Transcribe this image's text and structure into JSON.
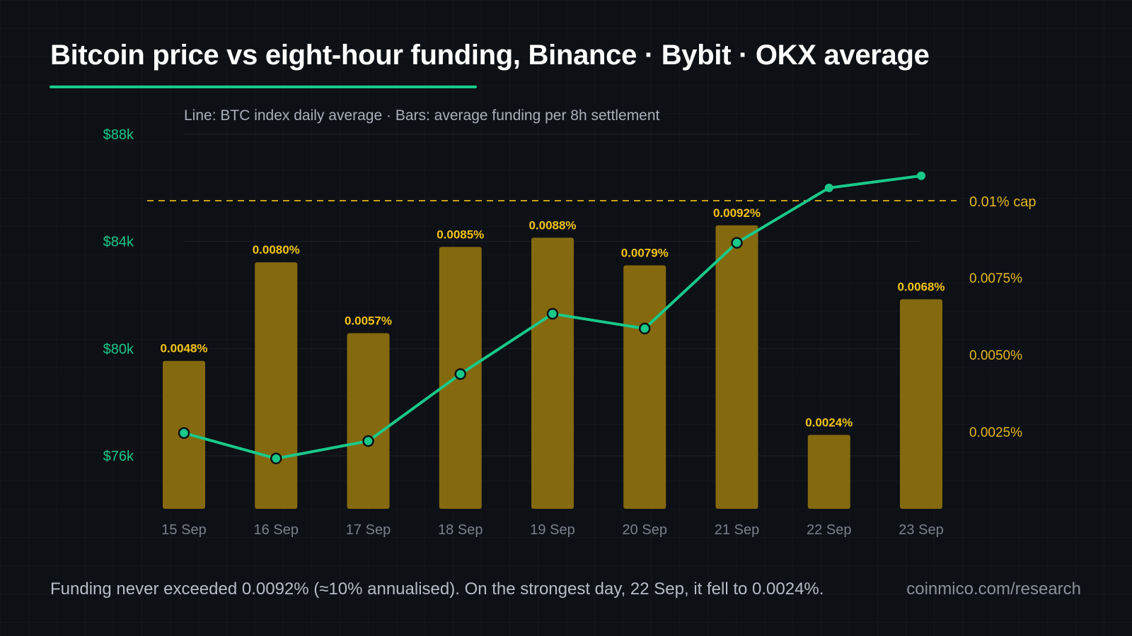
{
  "title": "Bitcoin price vs eight-hour funding, Binance · Bybit · OKX average",
  "chart_data": {
    "type": "bar+line",
    "subtitle": "Line: BTC index daily average · Bars: average funding per 8h settlement",
    "categories": [
      "15 Sep",
      "16 Sep",
      "17 Sep",
      "18 Sep",
      "19 Sep",
      "20 Sep",
      "21 Sep",
      "22 Sep",
      "23 Sep"
    ],
    "bar_series": {
      "axis": "right",
      "unit": "%",
      "values": [
        0.0048,
        0.008,
        0.0057,
        0.0085,
        0.0088,
        0.0079,
        0.0092,
        0.0024,
        0.0068
      ],
      "labels": [
        "0.0048%",
        "0.0080%",
        "0.0057%",
        "0.0085%",
        "0.0088%",
        "0.0079%",
        "0.0092%",
        "0.0024%",
        "0.0068%"
      ]
    },
    "line_series": {
      "axis": "left",
      "unit": "USD",
      "values": [
        76850,
        75900,
        76550,
        79050,
        81300,
        80750,
        83950,
        86000,
        86450
      ]
    },
    "left_axis": {
      "ticks": [
        76000,
        80000,
        84000,
        88000
      ],
      "tick_labels": [
        "$76k",
        "$80k",
        "$84k",
        "$88k"
      ],
      "range": [
        73900,
        88000
      ]
    },
    "right_axis": {
      "ticks": [
        0.0025,
        0.005,
        0.0075
      ],
      "tick_labels": [
        "0.0025%",
        "0.0050%",
        "0.0075%"
      ],
      "range": [
        0,
        0.0115
      ]
    },
    "reference_line": {
      "value": 0.01,
      "label": "0.01% cap"
    },
    "grid": true,
    "colors": {
      "price_line": "#19c98a",
      "bars": "#85690e",
      "bar_labels": "#f2c318",
      "cap_line": "#c9a213",
      "left_axis": "#19c98a",
      "right_axis": "#e6b820",
      "x_labels": "#7a818c"
    }
  },
  "footer": {
    "note": "Funding never exceeded 0.0092% (≈10% annualised). On the strongest day, 22 Sep, it fell to 0.0024%.",
    "source": "coinmico.com/research"
  }
}
